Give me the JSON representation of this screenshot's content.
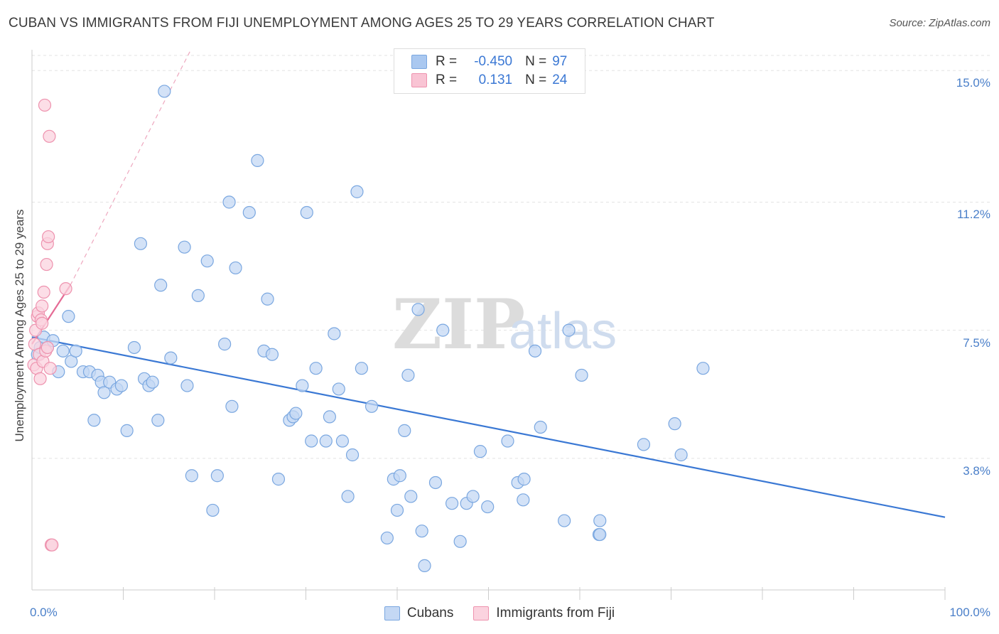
{
  "title": "CUBAN VS IMMIGRANTS FROM FIJI UNEMPLOYMENT AMONG AGES 25 TO 29 YEARS CORRELATION CHART",
  "source": "Source: ZipAtlas.com",
  "watermark": {
    "zip": "ZIP",
    "atlas": "atlas"
  },
  "legend": {
    "rows": [
      {
        "r_label": "R =",
        "r_value": "-0.450",
        "n_label": "N =",
        "n_value": "97",
        "color": "#aac8f0",
        "border": "#7aa7e0"
      },
      {
        "r_label": "R =",
        "r_value": "0.131",
        "n_label": "N =",
        "n_value": "24",
        "color": "#f9c4d4",
        "border": "#ee92ae"
      }
    ]
  },
  "bottom_legend": [
    {
      "label": "Cubans",
      "color": "#c4d8f4",
      "border": "#7aa7e0"
    },
    {
      "label": "Immigrants from Fiji",
      "color": "#fbd3df",
      "border": "#ee92ae"
    }
  ],
  "chart_data": {
    "type": "scatter",
    "title": "CUBAN VS IMMIGRANTS FROM FIJI UNEMPLOYMENT AMONG AGES 25 TO 29 YEARS CORRELATION CHART",
    "xlabel": "",
    "ylabel": "Unemployment Among Ages 25 to 29 years",
    "xlim": [
      0,
      100
    ],
    "ylim": [
      0,
      15.6
    ],
    "x_tick_labels": [
      "0.0%",
      "100.0%"
    ],
    "y_ticks": [
      3.8,
      7.5,
      11.2,
      15.0
    ],
    "y_tick_labels": [
      "3.8%",
      "7.5%",
      "11.2%",
      "15.0%"
    ],
    "grid": true,
    "series": [
      {
        "name": "Cubans",
        "color": "#7aa7e0",
        "fill": "#c4d8f4",
        "points": [
          [
            0.6,
            6.8
          ],
          [
            0.9,
            7.0
          ],
          [
            1.3,
            7.3
          ],
          [
            1.7,
            7.0
          ],
          [
            2.3,
            7.2
          ],
          [
            2.9,
            6.3
          ],
          [
            3.4,
            6.9
          ],
          [
            4.0,
            7.9
          ],
          [
            4.3,
            6.6
          ],
          [
            4.8,
            6.9
          ],
          [
            5.6,
            6.3
          ],
          [
            6.3,
            6.3
          ],
          [
            6.8,
            4.9
          ],
          [
            7.2,
            6.2
          ],
          [
            7.6,
            6.0
          ],
          [
            7.9,
            5.7
          ],
          [
            8.5,
            6.0
          ],
          [
            9.3,
            5.8
          ],
          [
            9.8,
            5.9
          ],
          [
            10.4,
            4.6
          ],
          [
            11.2,
            7.0
          ],
          [
            11.9,
            10.0
          ],
          [
            12.3,
            6.1
          ],
          [
            12.8,
            5.9
          ],
          [
            13.2,
            6.0
          ],
          [
            13.8,
            4.9
          ],
          [
            14.1,
            8.8
          ],
          [
            14.5,
            14.4
          ],
          [
            15.2,
            6.7
          ],
          [
            16.7,
            9.9
          ],
          [
            17.0,
            5.9
          ],
          [
            17.5,
            3.3
          ],
          [
            18.2,
            8.5
          ],
          [
            19.2,
            9.5
          ],
          [
            19.8,
            2.3
          ],
          [
            20.3,
            3.3
          ],
          [
            21.1,
            7.1
          ],
          [
            21.6,
            11.2
          ],
          [
            21.9,
            5.3
          ],
          [
            22.3,
            9.3
          ],
          [
            23.8,
            10.9
          ],
          [
            24.7,
            12.4
          ],
          [
            25.4,
            6.9
          ],
          [
            25.8,
            8.4
          ],
          [
            26.3,
            6.8
          ],
          [
            27.0,
            3.2
          ],
          [
            28.2,
            4.9
          ],
          [
            28.6,
            5.0
          ],
          [
            28.9,
            5.1
          ],
          [
            29.6,
            5.9
          ],
          [
            30.1,
            10.9
          ],
          [
            30.6,
            4.3
          ],
          [
            31.1,
            6.4
          ],
          [
            32.2,
            4.3
          ],
          [
            32.6,
            5.0
          ],
          [
            33.1,
            7.4
          ],
          [
            33.6,
            5.8
          ],
          [
            34.0,
            4.3
          ],
          [
            34.6,
            2.7
          ],
          [
            35.1,
            3.9
          ],
          [
            35.6,
            11.5
          ],
          [
            36.1,
            6.4
          ],
          [
            37.2,
            5.3
          ],
          [
            38.9,
            1.5
          ],
          [
            39.6,
            3.2
          ],
          [
            40.0,
            2.3
          ],
          [
            40.3,
            3.3
          ],
          [
            40.8,
            4.6
          ],
          [
            41.2,
            6.2
          ],
          [
            41.5,
            2.7
          ],
          [
            42.3,
            8.1
          ],
          [
            42.7,
            1.7
          ],
          [
            43.0,
            0.7
          ],
          [
            44.2,
            3.1
          ],
          [
            45.0,
            7.5
          ],
          [
            46.0,
            2.5
          ],
          [
            46.9,
            1.4
          ],
          [
            47.6,
            2.5
          ],
          [
            48.3,
            2.7
          ],
          [
            49.1,
            4.0
          ],
          [
            49.9,
            2.4
          ],
          [
            52.1,
            4.3
          ],
          [
            53.2,
            3.1
          ],
          [
            53.8,
            2.6
          ],
          [
            53.9,
            3.2
          ],
          [
            55.1,
            6.9
          ],
          [
            55.7,
            4.7
          ],
          [
            58.3,
            2.0
          ],
          [
            58.8,
            7.5
          ],
          [
            60.2,
            6.2
          ],
          [
            62.1,
            1.6
          ],
          [
            62.2,
            2.0
          ],
          [
            67.0,
            4.2
          ],
          [
            70.4,
            4.8
          ],
          [
            71.1,
            3.9
          ],
          [
            73.5,
            6.4
          ],
          [
            62.2,
            1.6
          ]
        ]
      },
      {
        "name": "Immigrants from Fiji",
        "color": "#ee92ae",
        "fill": "#fbd3df",
        "points": [
          [
            0.2,
            6.5
          ],
          [
            0.3,
            7.1
          ],
          [
            0.4,
            7.5
          ],
          [
            0.5,
            6.4
          ],
          [
            0.6,
            7.9
          ],
          [
            0.7,
            8.0
          ],
          [
            0.8,
            6.8
          ],
          [
            0.9,
            6.1
          ],
          [
            1.0,
            7.8
          ],
          [
            1.1,
            8.2
          ],
          [
            1.2,
            6.6
          ],
          [
            1.3,
            8.6
          ],
          [
            1.4,
            14.0
          ],
          [
            1.5,
            6.9
          ],
          [
            1.6,
            9.4
          ],
          [
            1.7,
            10.0
          ],
          [
            1.8,
            10.2
          ],
          [
            1.9,
            13.1
          ],
          [
            2.0,
            6.4
          ],
          [
            2.1,
            1.3
          ],
          [
            2.2,
            1.3
          ],
          [
            3.7,
            8.7
          ],
          [
            1.1,
            7.7
          ],
          [
            1.7,
            7.0
          ]
        ]
      }
    ],
    "trendlines": [
      {
        "series": "Cubans",
        "style": "solid",
        "color": "#3a78d4",
        "from": [
          0,
          7.3
        ],
        "to": [
          100,
          2.1
        ]
      },
      {
        "series": "Immigrants from Fiji",
        "style": "solid",
        "color": "#e56b95",
        "from": [
          0,
          7.1
        ],
        "to": [
          4.2,
          8.8
        ]
      },
      {
        "series": "Immigrants from Fiji",
        "style": "dashed",
        "color": "#eea8bf",
        "from": [
          4.2,
          8.8
        ],
        "to": [
          17.4,
          15.6
        ]
      }
    ]
  }
}
